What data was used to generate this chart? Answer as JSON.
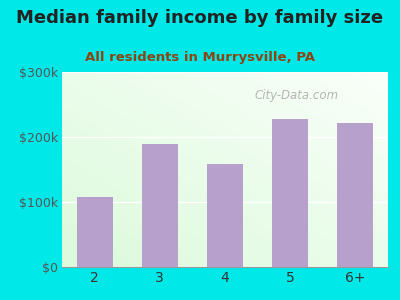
{
  "title": "Median family income by family size",
  "subtitle": "All residents in Murrysville, PA",
  "categories": [
    "2",
    "3",
    "4",
    "5",
    "6+"
  ],
  "values": [
    108000,
    190000,
    158000,
    228000,
    222000
  ],
  "bar_color": "#b8a0cc",
  "background_color": "#00e8e8",
  "ylim": [
    0,
    300000
  ],
  "yticks": [
    0,
    100000,
    200000,
    300000
  ],
  "ytick_labels": [
    "$0",
    "$100k",
    "$200k",
    "$300k"
  ],
  "title_color": "#222222",
  "subtitle_color": "#8b4513",
  "watermark": "City-Data.com",
  "watermark_color": "#aaaaaa",
  "title_fontsize": 13,
  "subtitle_fontsize": 9.5,
  "tick_fontsize": 9,
  "xtick_fontsize": 10
}
